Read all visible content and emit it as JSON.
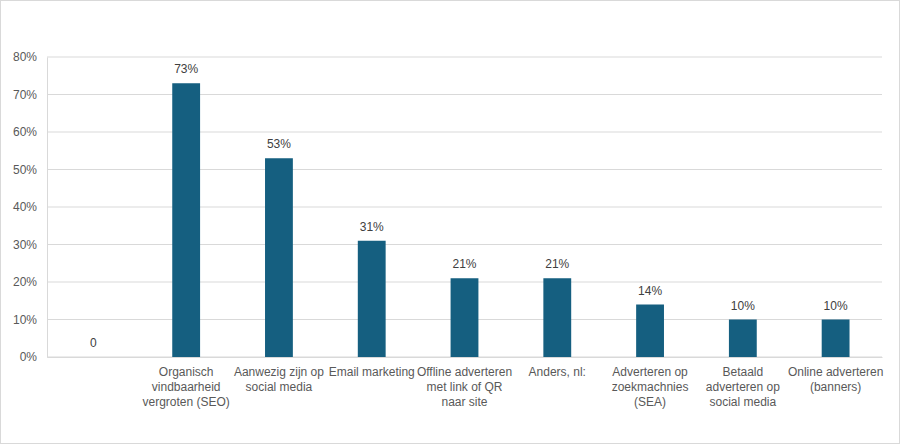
{
  "chart_data": {
    "type": "bar",
    "categories": [
      null,
      "Organisch vindbaarheid vergroten (SEO)",
      "Aanwezig zijn op social media",
      "Email marketing",
      "Offline adverteren met link of QR naar site",
      "Anders, nl:",
      "Adverteren op zoekmachnies (SEA)",
      "Betaald adverteren op social media",
      "Online adverteren (banners)"
    ],
    "values": [
      0,
      73,
      53,
      31,
      21,
      21,
      14,
      10,
      10
    ],
    "value_labels": [
      "0",
      "73%",
      "53%",
      "31%",
      "21%",
      "21%",
      "14%",
      "10%",
      "10%"
    ],
    "color": "#155f80",
    "ylim": [
      0,
      80
    ],
    "yticks": [
      {
        "value": 0,
        "label": "0%"
      },
      {
        "value": 10,
        "label": "10%"
      },
      {
        "value": 20,
        "label": "20%"
      },
      {
        "value": 30,
        "label": "30%"
      },
      {
        "value": 40,
        "label": "40%"
      },
      {
        "value": 50,
        "label": "50%"
      },
      {
        "value": 60,
        "label": "60%"
      },
      {
        "value": 70,
        "label": "70%"
      },
      {
        "value": 80,
        "label": "80%"
      }
    ],
    "grid": true,
    "data_labels": true
  }
}
